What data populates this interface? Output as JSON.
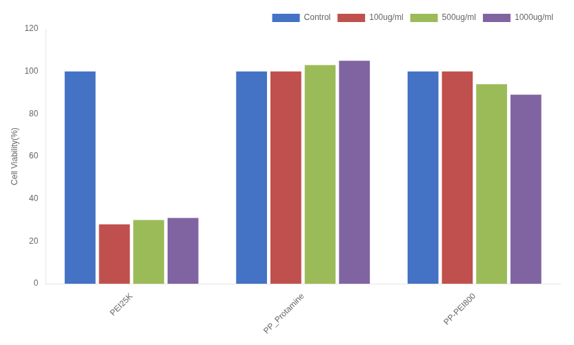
{
  "chart_data": {
    "type": "bar",
    "categories": [
      "PEI25K",
      "PP_Protamine",
      "PP-PEI800"
    ],
    "series": [
      {
        "name": "Control",
        "color": "#4472C4",
        "values": [
          100,
          100,
          100
        ]
      },
      {
        "name": "100ug/ml",
        "color": "#C0504D",
        "values": [
          28,
          100,
          100
        ]
      },
      {
        "name": "500ug/ml",
        "color": "#9BBB59",
        "values": [
          30,
          103,
          94
        ]
      },
      {
        "name": "1000ug/ml",
        "color": "#8064A2",
        "values": [
          31,
          105,
          89
        ]
      }
    ],
    "ylabel": "Cell Viability(%)",
    "ylim": [
      0,
      120
    ],
    "yticks": [
      0,
      20,
      40,
      60,
      80,
      100,
      120
    ],
    "grid": false,
    "legend": "upper right"
  }
}
